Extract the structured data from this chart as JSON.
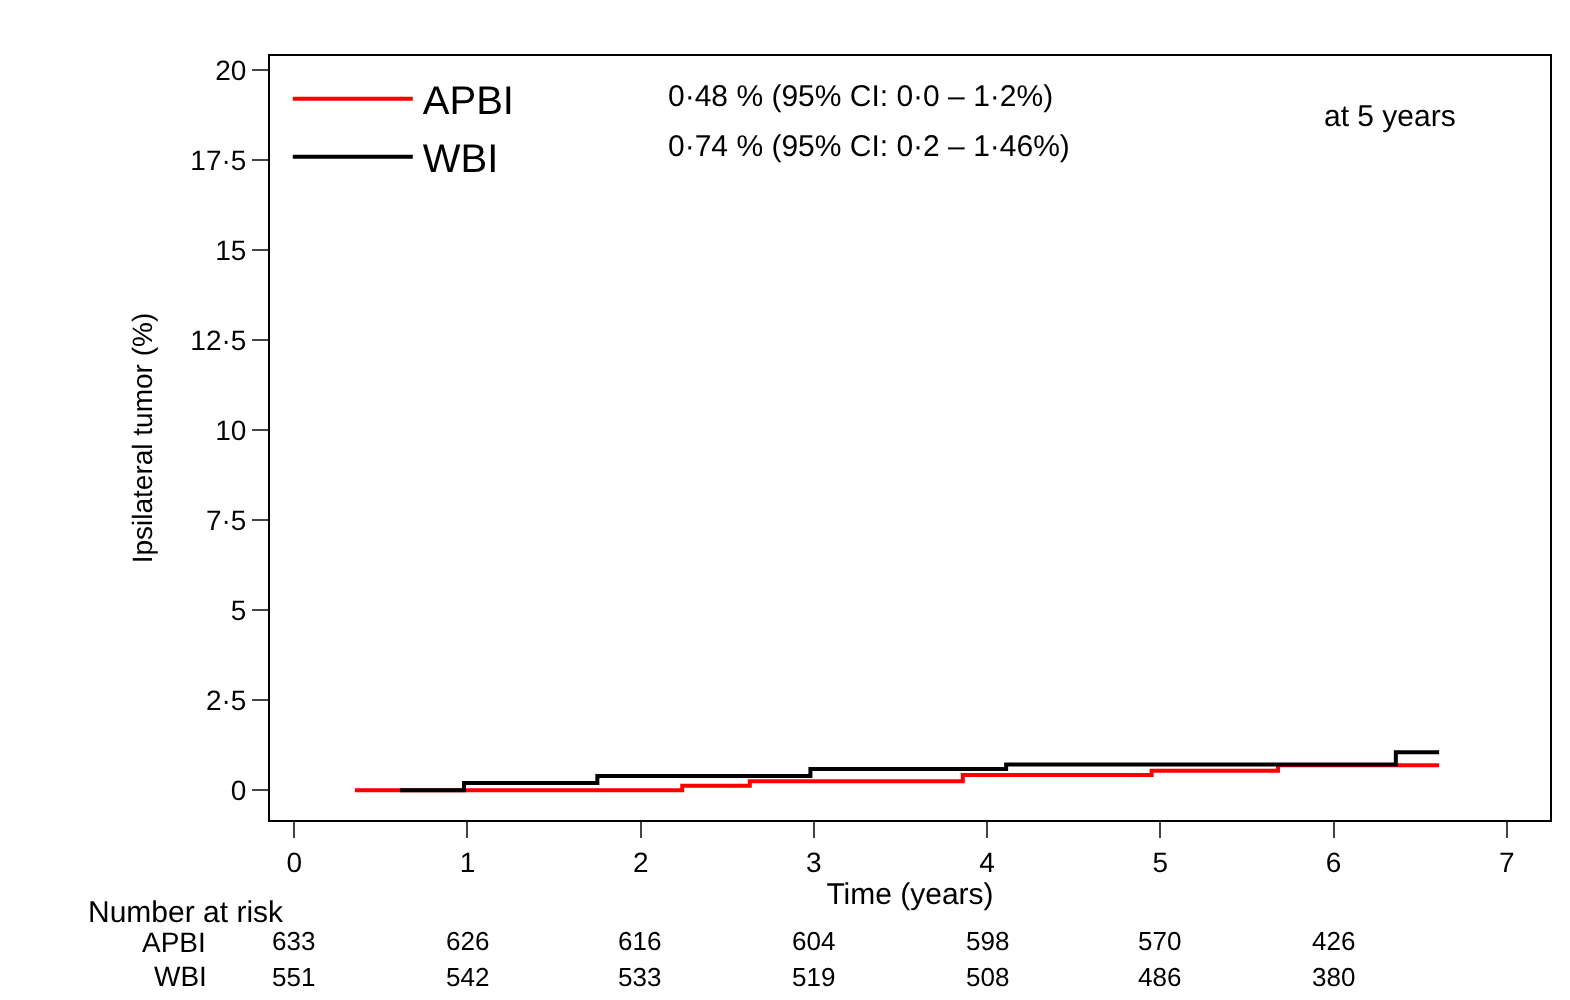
{
  "chart_data": {
    "type": "step",
    "xlabel": "Time (years)",
    "ylabel": "Ipsilateral tumor (%)",
    "xlim": [
      -0.14,
      7.25
    ],
    "ylim": [
      -0.83,
      20.4
    ],
    "xticks": [
      0,
      1,
      2,
      3,
      4,
      5,
      6,
      7
    ],
    "yticks": [
      0,
      {
        "value": 2.5,
        "label": "2·5"
      },
      5,
      {
        "value": 7.5,
        "label": "7·5"
      },
      10,
      {
        "value": 12.5,
        "label": "12·5"
      },
      15,
      {
        "value": 17.5,
        "label": "17·5"
      },
      20
    ],
    "legend": "top left",
    "series": [
      {
        "name": "APBI",
        "color": "#ff0000",
        "x": [
          0.35,
          2.24,
          2.63,
          3.86,
          4.95,
          5.68,
          6.61
        ],
        "values": [
          0,
          0.12,
          0.25,
          0.42,
          0.54,
          0.69,
          0.69
        ]
      },
      {
        "name": "WBI",
        "color": "#000000",
        "x": [
          0.61,
          0.98,
          1.75,
          2.98,
          4.11,
          6.36,
          6.61
        ],
        "values": [
          0,
          0.2,
          0.39,
          0.59,
          0.71,
          1.05,
          1.05
        ]
      }
    ],
    "annotations": [
      "0·48 % (95% CI: 0·0 – 1·2%)",
      "0·74 % (95% CI: 0·2 – 1·46%)",
      "at 5 years",
      "Number at risk",
      "APBI",
      "633",
      "626",
      "616",
      "604",
      "598",
      "570",
      "426",
      "WBI",
      "551",
      "542",
      "533",
      "519",
      "508",
      "486",
      "380"
    ]
  }
}
